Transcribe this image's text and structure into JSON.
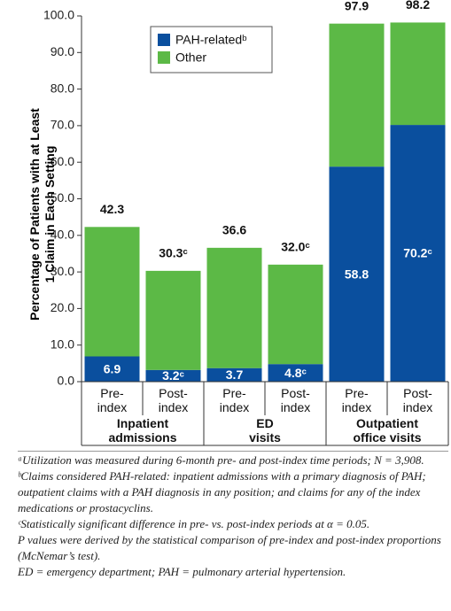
{
  "chart_data": {
    "type": "stacked-bar",
    "y_label": "Percentage of Patients with at Least\n1 Claim in Each Setting",
    "categories": [
      "Pre-\nindex",
      "Post-\nindex",
      "Pre-\nindex",
      "Post-\nindex",
      "Pre-\nindex",
      "Post-\nindex"
    ],
    "groups": [
      "Inpatient\nadmissions",
      "ED\nvisits",
      "Outpatient\noffice visits"
    ],
    "series": [
      {
        "name": "PAH-relatedᵇ",
        "color": "#0a4f9e",
        "values": [
          6.9,
          3.2,
          3.7,
          4.8,
          58.8,
          70.2
        ],
        "value_labels": [
          "6.9",
          "3.2ᶜ",
          "3.7",
          "4.8ᶜ",
          "58.8",
          "70.2ᶜ"
        ]
      },
      {
        "name": "Other",
        "color": "#5cb946",
        "values": [
          35.4,
          27.1,
          32.9,
          27.2,
          39.1,
          28.0
        ]
      }
    ],
    "totals": [
      42.3,
      30.3,
      36.6,
      32.0,
      97.9,
      98.2
    ],
    "total_labels": [
      "42.3",
      "30.3ᶜ",
      "36.6",
      "32.0ᶜ",
      "97.9",
      "98.2"
    ],
    "ylim": [
      0,
      100
    ],
    "yticks": [
      {
        "value": 0,
        "label": "0.0"
      },
      {
        "value": 10,
        "label": "10.0"
      },
      {
        "value": 20,
        "label": "20.0"
      },
      {
        "value": 30,
        "label": "30.0"
      },
      {
        "value": 40,
        "label": "40.0"
      },
      {
        "value": 50,
        "label": "50.0"
      },
      {
        "value": 60,
        "label": "60.0"
      },
      {
        "value": 70,
        "label": "70.0"
      },
      {
        "value": 80,
        "label": "80.0"
      },
      {
        "value": 90,
        "label": "90.0"
      },
      {
        "value": 100,
        "label": "100.0"
      }
    ],
    "legend": "upper-left",
    "footnotes": [
      "ᵃUtilization was measured during 6-month pre- and post-index time periods; N = 3,908.",
      "ᵇClaims considered PAH-related: inpatient admissions with a primary diagnosis of PAH; outpatient claims with a PAH diagnosis in any position; and claims for any of the index medications or prostacyclins.",
      "ᶜStatistically significant difference in pre- vs. post-index periods at α = 0.05.",
      "P values were derived by the statistical comparison of pre-index and post-index proportions (McNemar’s test).",
      "ED = emergency department; PAH = pulmonary arterial hypertension."
    ]
  }
}
